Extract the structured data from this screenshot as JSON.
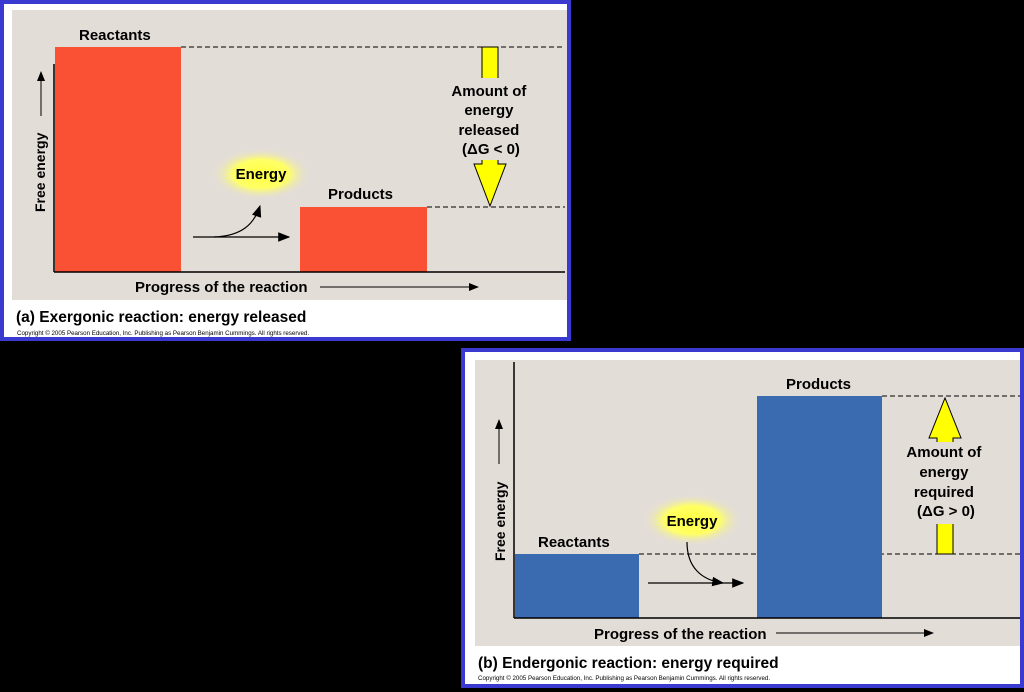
{
  "panel_a": {
    "caption": "(a) Exergonic reaction: energy released",
    "copyright": "Copyright © 2005 Pearson Education, Inc. Publishing as Pearson Benjamin Cummings. All rights reserved.",
    "y_axis_label": "Free energy",
    "x_axis_label": "Progress of the reaction",
    "reactants_label": "Reactants",
    "products_label": "Products",
    "energy_label": "Energy",
    "delta_lines": [
      "Amount of",
      "energy",
      "released",
      "(ΔG < 0)"
    ],
    "bar_color": "#fa5033",
    "arrow_color": "#ffff00",
    "direction": "down"
  },
  "panel_b": {
    "caption": "(b) Endergonic reaction: energy required",
    "copyright": "Copyright © 2005 Pearson Education, Inc. Publishing as Pearson Benjamin Cummings. All rights reserved.",
    "y_axis_label": "Free energy",
    "x_axis_label": "Progress of the reaction",
    "reactants_label": "Reactants",
    "products_label": "Products",
    "energy_label": "Energy",
    "delta_lines": [
      "Amount of",
      "energy",
      "required",
      "(ΔG > 0)"
    ],
    "bar_color": "#3a6bb0",
    "arrow_color": "#ffff00",
    "direction": "up"
  }
}
